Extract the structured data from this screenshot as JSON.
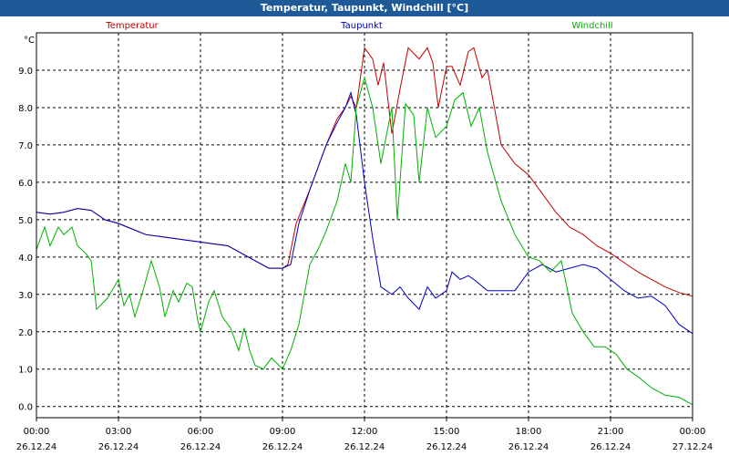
{
  "window": {
    "title": "Temperatur, Taupunkt, Windchill [°C]"
  },
  "chart_data": {
    "type": "line",
    "title": "Temperatur, Taupunkt, Windchill [°C]",
    "ylabel": "°C",
    "ylim": [
      -0.3,
      10.0
    ],
    "y_ticks": [
      "0.0",
      "1.0",
      "2.0",
      "3.0",
      "4.0",
      "5.0",
      "6.0",
      "7.0",
      "8.0",
      "9.0"
    ],
    "xlim": [
      0,
      24
    ],
    "x_ticks": [
      {
        "time": "00:00",
        "date": "26.12.24"
      },
      {
        "time": "03:00",
        "date": "26.12.24"
      },
      {
        "time": "06:00",
        "date": "26.12.24"
      },
      {
        "time": "09:00",
        "date": "26.12.24"
      },
      {
        "time": "12:00",
        "date": "26.12.24"
      },
      {
        "time": "15:00",
        "date": "26.12.24"
      },
      {
        "time": "18:00",
        "date": "26.12.24"
      },
      {
        "time": "21:00",
        "date": "26.12.24"
      },
      {
        "time": "00:00",
        "date": "27.12.24"
      }
    ],
    "grid": true,
    "series": [
      {
        "name": "Temperatur",
        "color": "#c00000",
        "points": [
          [
            0,
            5.2
          ],
          [
            0.5,
            5.15
          ],
          [
            1,
            5.2
          ],
          [
            1.5,
            5.3
          ],
          [
            2,
            5.25
          ],
          [
            2.5,
            5.0
          ],
          [
            3,
            4.9
          ],
          [
            3.5,
            4.75
          ],
          [
            4,
            4.6
          ],
          [
            4.5,
            4.55
          ],
          [
            5,
            4.5
          ],
          [
            5.5,
            4.45
          ],
          [
            6,
            4.4
          ],
          [
            6.5,
            4.35
          ],
          [
            7,
            4.3
          ],
          [
            7.5,
            4.1
          ],
          [
            8,
            3.9
          ],
          [
            8.5,
            3.7
          ],
          [
            9,
            3.7
          ],
          [
            9.2,
            3.8
          ],
          [
            9.5,
            4.9
          ],
          [
            10,
            5.8
          ],
          [
            10.3,
            6.4
          ],
          [
            10.6,
            7.0
          ],
          [
            11,
            7.7
          ],
          [
            11.3,
            8.0
          ],
          [
            11.5,
            8.3
          ],
          [
            11.7,
            8.0
          ],
          [
            12.0,
            9.6
          ],
          [
            12.3,
            9.3
          ],
          [
            12.5,
            8.6
          ],
          [
            12.7,
            9.2
          ],
          [
            13,
            7.3
          ],
          [
            13.3,
            8.5
          ],
          [
            13.6,
            9.6
          ],
          [
            14,
            9.3
          ],
          [
            14.3,
            9.6
          ],
          [
            14.5,
            9.2
          ],
          [
            14.7,
            8.0
          ],
          [
            15,
            9.1
          ],
          [
            15.2,
            9.1
          ],
          [
            15.5,
            8.6
          ],
          [
            15.8,
            9.5
          ],
          [
            16,
            9.6
          ],
          [
            16.3,
            8.8
          ],
          [
            16.5,
            9.0
          ],
          [
            17,
            7.0
          ],
          [
            17.5,
            6.5
          ],
          [
            18,
            6.2
          ],
          [
            18.5,
            5.7
          ],
          [
            19,
            5.2
          ],
          [
            19.5,
            4.8
          ],
          [
            20,
            4.6
          ],
          [
            20.5,
            4.3
          ],
          [
            21,
            4.1
          ],
          [
            21.5,
            3.85
          ],
          [
            22,
            3.6
          ],
          [
            22.5,
            3.4
          ],
          [
            23,
            3.2
          ],
          [
            23.5,
            3.05
          ],
          [
            24,
            2.95
          ]
        ]
      },
      {
        "name": "Taupunkt",
        "color": "#0000c0",
        "points": [
          [
            0,
            5.2
          ],
          [
            0.5,
            5.15
          ],
          [
            1,
            5.2
          ],
          [
            1.5,
            5.3
          ],
          [
            2,
            5.25
          ],
          [
            2.5,
            5.0
          ],
          [
            3,
            4.9
          ],
          [
            3.5,
            4.75
          ],
          [
            4,
            4.6
          ],
          [
            4.5,
            4.55
          ],
          [
            5,
            4.5
          ],
          [
            5.5,
            4.45
          ],
          [
            6,
            4.4
          ],
          [
            6.5,
            4.35
          ],
          [
            7,
            4.3
          ],
          [
            7.5,
            4.1
          ],
          [
            8,
            3.9
          ],
          [
            8.5,
            3.7
          ],
          [
            9,
            3.7
          ],
          [
            9.3,
            3.8
          ],
          [
            9.6,
            4.9
          ],
          [
            10,
            5.8
          ],
          [
            10.3,
            6.4
          ],
          [
            10.6,
            7.0
          ],
          [
            11,
            7.6
          ],
          [
            11.3,
            8.0
          ],
          [
            11.5,
            8.4
          ],
          [
            11.7,
            7.8
          ],
          [
            12,
            6.0
          ],
          [
            12.3,
            4.5
          ],
          [
            12.6,
            3.2
          ],
          [
            13,
            3.0
          ],
          [
            13.3,
            3.2
          ],
          [
            13.6,
            2.9
          ],
          [
            14,
            2.6
          ],
          [
            14.3,
            3.2
          ],
          [
            14.6,
            2.9
          ],
          [
            15,
            3.1
          ],
          [
            15.2,
            3.6
          ],
          [
            15.5,
            3.4
          ],
          [
            15.8,
            3.5
          ],
          [
            16,
            3.4
          ],
          [
            16.5,
            3.1
          ],
          [
            17,
            3.1
          ],
          [
            17.5,
            3.1
          ],
          [
            18,
            3.6
          ],
          [
            18.5,
            3.8
          ],
          [
            19,
            3.6
          ],
          [
            19.5,
            3.7
          ],
          [
            20,
            3.8
          ],
          [
            20.5,
            3.7
          ],
          [
            21,
            3.4
          ],
          [
            21.5,
            3.1
          ],
          [
            22,
            2.9
          ],
          [
            22.5,
            2.95
          ],
          [
            23,
            2.7
          ],
          [
            23.5,
            2.2
          ],
          [
            24,
            1.95
          ]
        ]
      },
      {
        "name": "Windchill",
        "color": "#00b000",
        "points": [
          [
            0,
            4.2
          ],
          [
            0.3,
            4.8
          ],
          [
            0.5,
            4.3
          ],
          [
            0.8,
            4.8
          ],
          [
            1,
            4.6
          ],
          [
            1.3,
            4.8
          ],
          [
            1.5,
            4.3
          ],
          [
            1.8,
            4.1
          ],
          [
            2,
            3.9
          ],
          [
            2.2,
            2.6
          ],
          [
            2.6,
            2.9
          ],
          [
            3,
            3.4
          ],
          [
            3.2,
            2.7
          ],
          [
            3.4,
            3.0
          ],
          [
            3.6,
            2.4
          ],
          [
            3.9,
            3.1
          ],
          [
            4.2,
            3.9
          ],
          [
            4.5,
            3.2
          ],
          [
            4.7,
            2.4
          ],
          [
            5,
            3.1
          ],
          [
            5.2,
            2.8
          ],
          [
            5.5,
            3.3
          ],
          [
            5.7,
            3.2
          ],
          [
            5.9,
            2.3
          ],
          [
            6,
            2.0
          ],
          [
            6.3,
            2.8
          ],
          [
            6.5,
            3.1
          ],
          [
            6.8,
            2.4
          ],
          [
            7.1,
            2.1
          ],
          [
            7.4,
            1.5
          ],
          [
            7.6,
            2.1
          ],
          [
            7.8,
            1.5
          ],
          [
            8,
            1.1
          ],
          [
            8.3,
            1.0
          ],
          [
            8.6,
            1.3
          ],
          [
            9,
            1.0
          ],
          [
            9.3,
            1.5
          ],
          [
            9.6,
            2.2
          ],
          [
            9.8,
            3.0
          ],
          [
            10,
            3.8
          ],
          [
            10.3,
            4.2
          ],
          [
            10.6,
            4.7
          ],
          [
            11,
            5.5
          ],
          [
            11.3,
            6.5
          ],
          [
            11.5,
            6.0
          ],
          [
            11.7,
            8.0
          ],
          [
            12,
            8.8
          ],
          [
            12.3,
            8.0
          ],
          [
            12.6,
            6.5
          ],
          [
            13,
            8.0
          ],
          [
            13.2,
            5.0
          ],
          [
            13.5,
            8.1
          ],
          [
            13.8,
            7.8
          ],
          [
            14,
            6.0
          ],
          [
            14.3,
            8.0
          ],
          [
            14.6,
            7.2
          ],
          [
            15,
            7.5
          ],
          [
            15.3,
            8.2
          ],
          [
            15.6,
            8.4
          ],
          [
            15.9,
            7.5
          ],
          [
            16.2,
            8.0
          ],
          [
            16.5,
            6.8
          ],
          [
            17,
            5.5
          ],
          [
            17.5,
            4.6
          ],
          [
            18,
            4.0
          ],
          [
            18.4,
            3.9
          ],
          [
            18.8,
            3.6
          ],
          [
            19.2,
            3.9
          ],
          [
            19.6,
            2.5
          ],
          [
            20,
            2.0
          ],
          [
            20.4,
            1.6
          ],
          [
            20.8,
            1.6
          ],
          [
            21.2,
            1.4
          ],
          [
            21.6,
            1.0
          ],
          [
            22,
            0.8
          ],
          [
            22.5,
            0.5
          ],
          [
            23,
            0.3
          ],
          [
            23.5,
            0.25
          ],
          [
            24,
            0.05
          ]
        ]
      }
    ]
  }
}
